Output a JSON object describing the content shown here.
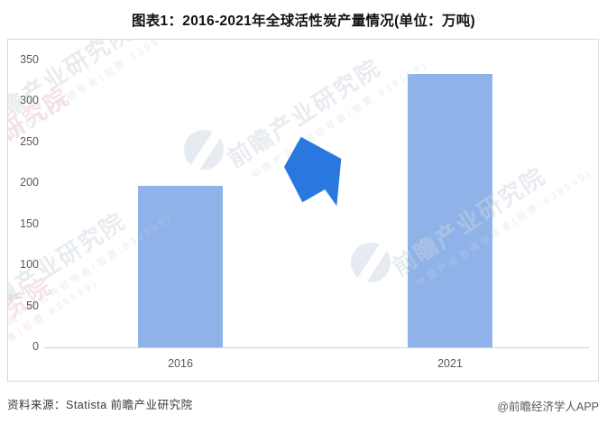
{
  "title": "图表1：2016-2021年全球活性炭产量情况(单位：万吨)",
  "chart_data": {
    "type": "bar",
    "categories": [
      "2016",
      "2021"
    ],
    "values": [
      197,
      333
    ],
    "title": "图表1：2016-2021年全球活性炭产量情况(单位：万吨)",
    "unit": "万吨",
    "xlabel": "",
    "ylabel": "",
    "ylim": [
      0,
      350
    ],
    "ytick_step": 50,
    "grid": false,
    "legend": "none",
    "bar_color": "#8FB3E8",
    "arrow_color": "#2878E0",
    "annotations": [
      "growth arrow pointing up-right between the two bars"
    ]
  },
  "watermark": {
    "text": "前瞻产业研究院",
    "subtext": "中国产业咨询领导者(股票:839599)"
  },
  "footer": {
    "source": "资料来源：Statista  前瞻产业研究院",
    "credit": "@前瞻经济学人APP"
  },
  "colors": {
    "panel_border": "#D9D9D9",
    "axis_text": "#595959",
    "baseline": "#CFD2D6",
    "title_text": "#111111",
    "watermark": "#E8ECF0"
  }
}
